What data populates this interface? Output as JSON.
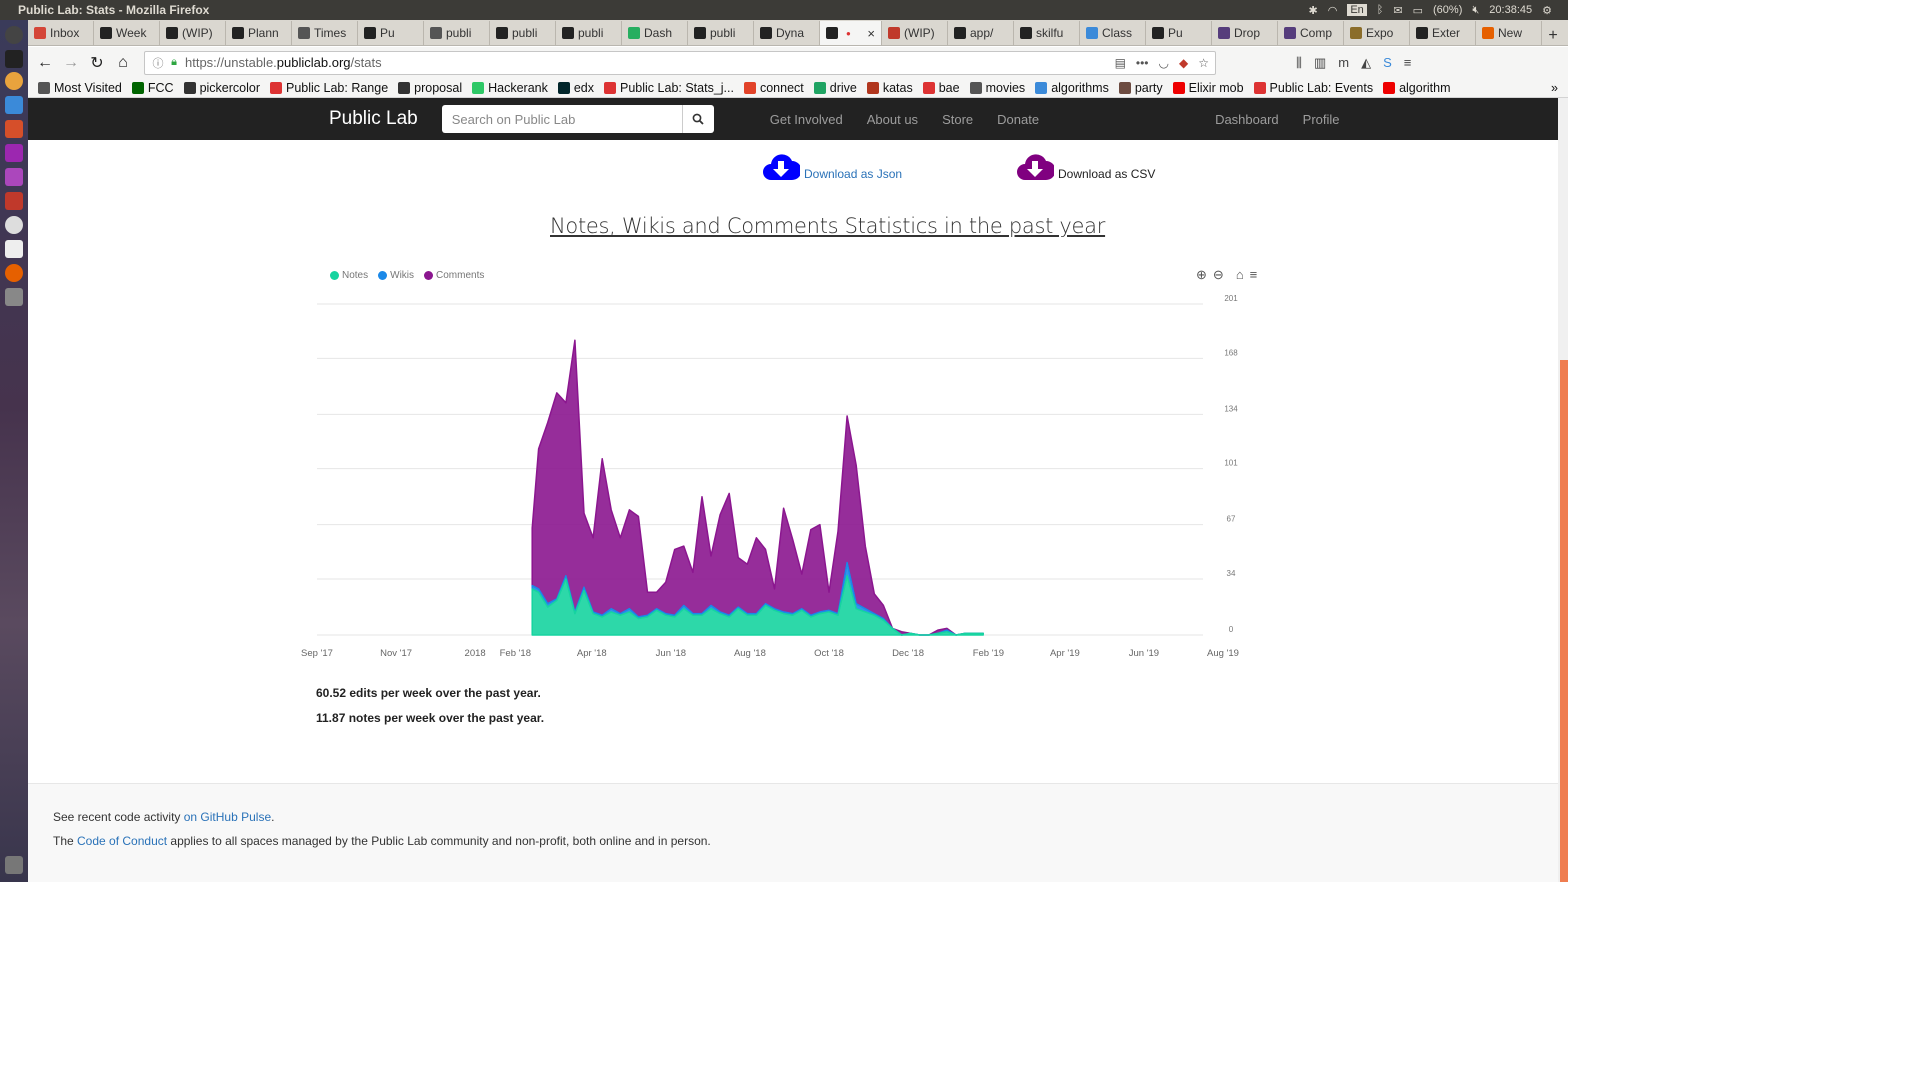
{
  "os": {
    "window_title": "Public Lab: Stats - Mozilla Firefox",
    "keyboard": "En",
    "battery": "(60%)",
    "clock": "20:38:45"
  },
  "tabs": [
    {
      "label": "Inbox",
      "color": "#d44638"
    },
    {
      "label": "Week",
      "color": "#222"
    },
    {
      "label": "(WIP)",
      "color": "#222"
    },
    {
      "label": "Plann",
      "color": "#222"
    },
    {
      "label": "Times",
      "color": "#555"
    },
    {
      "label": "Pu",
      "color": "#222"
    },
    {
      "label": "publi",
      "color": "#555"
    },
    {
      "label": "publi",
      "color": "#222"
    },
    {
      "label": "publi",
      "color": "#222"
    },
    {
      "label": "Dash",
      "color": "#27ae60"
    },
    {
      "label": "publi",
      "color": "#222"
    },
    {
      "label": "Dyna",
      "color": "#222"
    },
    {
      "label": "",
      "color": "#222",
      "active": true
    },
    {
      "label": "(WIP)",
      "color": "#c0392b"
    },
    {
      "label": "app/",
      "color": "#222"
    },
    {
      "label": "skilfu",
      "color": "#222"
    },
    {
      "label": "Class",
      "color": "#3b8ad9"
    },
    {
      "label": "Pu",
      "color": "#222"
    },
    {
      "label": "Drop",
      "color": "#563d7c"
    },
    {
      "label": "Comp",
      "color": "#563d7c"
    },
    {
      "label": "Expo",
      "color": "#8b6d2a"
    },
    {
      "label": "Exter",
      "color": "#222"
    },
    {
      "label": "New",
      "color": "#e66000"
    }
  ],
  "address": {
    "prefix": "https://unstable.",
    "domain": "publiclab.org",
    "path": "/stats"
  },
  "bookmarks": [
    {
      "label": "Most Visited",
      "color": "#555"
    },
    {
      "label": "FCC",
      "color": "#006400"
    },
    {
      "label": "pickercolor",
      "color": "#333"
    },
    {
      "label": "Public Lab: Range",
      "color": "#d33"
    },
    {
      "label": "proposal",
      "color": "#333"
    },
    {
      "label": "Hackerank",
      "color": "#2ec866"
    },
    {
      "label": "edx",
      "color": "#02262b"
    },
    {
      "label": "Public Lab: Stats_j...",
      "color": "#d33"
    },
    {
      "label": "connect",
      "color": "#e24329"
    },
    {
      "label": "drive",
      "color": "#1fa463"
    },
    {
      "label": "katas",
      "color": "#b1361e"
    },
    {
      "label": "bae",
      "color": "#d33"
    },
    {
      "label": "movies",
      "color": "#555"
    },
    {
      "label": "algorithms",
      "color": "#3b8ad9"
    },
    {
      "label": "party",
      "color": "#6d4c41"
    },
    {
      "label": "Elixir mob",
      "color": "#e00"
    },
    {
      "label": "Public Lab: Events",
      "color": "#d33"
    },
    {
      "label": "algorithm",
      "color": "#e00"
    }
  ],
  "site": {
    "brand": "Public Lab",
    "search_placeholder": "Search on Public Lab",
    "nav": [
      "Get Involved",
      "About us",
      "Store",
      "Donate"
    ],
    "nav_right": [
      "Dashboard",
      "Profile"
    ]
  },
  "downloads": {
    "json_label": "Download as Json",
    "csv_label": "Download as CSV",
    "json_color": "#0000ff",
    "csv_color": "#800080"
  },
  "chart_data": {
    "type": "area",
    "title": "Notes, Wikis and Comments Statistics in the past year",
    "stacked": true,
    "xlabels": [
      "Sep '17",
      "Nov '17",
      "2018",
      "Feb '18",
      "Apr '18",
      "Jun '18",
      "Aug '18",
      "Oct '18",
      "Dec '18",
      "Feb '19",
      "Apr '19",
      "Jun '19",
      "Aug '19"
    ],
    "yticks": [
      0,
      34,
      67,
      101,
      134,
      168,
      201
    ],
    "ylim": [
      0,
      201
    ],
    "legend_position": "top-left",
    "grid": true,
    "x_dates": [
      "2018-02-14",
      "2018-02-19",
      "2018-02-26",
      "2018-03-05",
      "2018-03-12",
      "2018-03-19",
      "2018-03-26",
      "2018-04-02",
      "2018-04-09",
      "2018-04-16",
      "2018-04-23",
      "2018-04-30",
      "2018-05-07",
      "2018-05-14",
      "2018-05-21",
      "2018-05-28",
      "2018-06-04",
      "2018-06-11",
      "2018-06-18",
      "2018-06-25",
      "2018-07-02",
      "2018-07-09",
      "2018-07-16",
      "2018-07-23",
      "2018-07-30",
      "2018-08-06",
      "2018-08-13",
      "2018-08-20",
      "2018-08-27",
      "2018-09-03",
      "2018-09-10",
      "2018-09-17",
      "2018-09-24",
      "2018-10-01",
      "2018-10-08",
      "2018-10-15",
      "2018-10-22",
      "2018-10-29",
      "2018-11-05",
      "2018-11-12",
      "2018-11-19",
      "2018-11-26",
      "2018-12-03",
      "2018-12-10",
      "2018-12-17",
      "2018-12-24",
      "2018-12-31",
      "2019-01-07",
      "2019-01-14",
      "2019-01-21",
      "2019-01-28"
    ],
    "series": [
      {
        "name": "Notes",
        "color": "#16d4a0",
        "values": [
          28,
          26,
          17,
          21,
          34,
          13,
          27,
          13,
          11,
          14,
          12,
          14,
          10,
          11,
          15,
          12,
          11,
          16,
          12,
          12,
          16,
          13,
          11,
          16,
          12,
          12,
          18,
          15,
          13,
          12,
          15,
          11,
          13,
          14,
          12,
          36,
          16,
          14,
          12,
          9,
          4,
          0,
          1,
          0,
          0,
          1,
          2,
          0,
          1,
          1,
          1
        ]
      },
      {
        "name": "Wikis",
        "color": "#1b89e8",
        "values": [
          2,
          2,
          2,
          1,
          2,
          1,
          2,
          1,
          1,
          2,
          1,
          2,
          1,
          1,
          1,
          1,
          1,
          2,
          1,
          1,
          2,
          1,
          1,
          1,
          1,
          1,
          1,
          1,
          1,
          1,
          1,
          1,
          1,
          1,
          1,
          8,
          3,
          2,
          1,
          1,
          0,
          0,
          0,
          0,
          0,
          0,
          1,
          0,
          0,
          0,
          0
        ]
      },
      {
        "name": "Comments",
        "color": "#8b168f",
        "values": [
          35,
          85,
          110,
          125,
          105,
          165,
          45,
          45,
          95,
          60,
          46,
          60,
          61,
          14,
          10,
          19,
          40,
          36,
          25,
          71,
          30,
          59,
          74,
          30,
          30,
          46,
          33,
          12,
          63,
          45,
          21,
          52,
          53,
          11,
          50,
          89,
          84,
          38,
          12,
          8,
          0,
          2,
          0,
          0,
          0,
          2,
          1,
          0,
          0,
          0,
          0
        ]
      }
    ]
  },
  "stats": {
    "edits_line": "60.52 edits per week over the past year.",
    "notes_line": "11.87 notes per week over the past year."
  },
  "footer": {
    "line1_prefix": "See recent code activity ",
    "line1_link": "on GitHub Pulse",
    "line1_suffix": ".",
    "line2_prefix": "The ",
    "line2_link": "Code of Conduct",
    "line2_suffix": " applies to all spaces managed by the Public Lab community and non-profit, both online and in person."
  }
}
